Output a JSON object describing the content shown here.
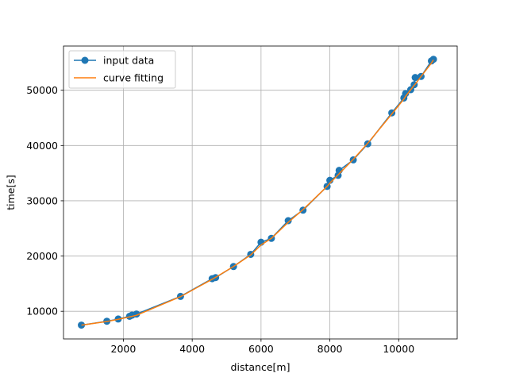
{
  "chart_data": {
    "type": "line",
    "xlabel": "distance[m]",
    "ylabel": "time[s]",
    "xlim": [
      260,
      11700
    ],
    "ylim": [
      5000,
      58000
    ],
    "xticks": [
      2000,
      4000,
      6000,
      8000,
      10000
    ],
    "yticks": [
      10000,
      20000,
      30000,
      40000,
      50000
    ],
    "xtick_labels": [
      "2000",
      "4000",
      "6000",
      "8000",
      "10000"
    ],
    "ytick_labels": [
      "10000",
      "20000",
      "30000",
      "40000",
      "50000"
    ],
    "grid": true,
    "legend_position": "top-left",
    "series": [
      {
        "name": "input data",
        "style": "line-with-markers",
        "color": "#1f77b4",
        "x": [
          780,
          1520,
          1850,
          2180,
          2250,
          2380,
          3660,
          4580,
          4680,
          5200,
          5700,
          6000,
          6300,
          6790,
          7220,
          7920,
          8000,
          8240,
          8270,
          8680,
          9100,
          9800,
          10150,
          10200,
          10350,
          10450,
          10480,
          10650,
          10950,
          11010
        ],
        "y": [
          7500,
          8200,
          8600,
          9100,
          9300,
          9500,
          12700,
          15900,
          16100,
          18100,
          20300,
          22500,
          23200,
          26400,
          28300,
          32600,
          33700,
          34600,
          35500,
          37400,
          40300,
          45900,
          48600,
          49400,
          50100,
          51000,
          52300,
          52500,
          55300,
          55600
        ]
      },
      {
        "name": "curve fitting",
        "style": "line",
        "color": "#ff7f0e",
        "x": [
          780,
          1520,
          1850,
          2180,
          2250,
          2380,
          3660,
          4580,
          4680,
          5200,
          5700,
          6000,
          6300,
          6790,
          7220,
          7920,
          8000,
          8240,
          8270,
          8680,
          9100,
          9800,
          10150,
          10200,
          10350,
          10450,
          10480,
          10650,
          10950,
          11010
        ],
        "y": [
          7500,
          8150,
          8550,
          8980,
          9080,
          9280,
          12650,
          15800,
          16150,
          18100,
          20200,
          22000,
          23200,
          26100,
          28400,
          32600,
          33200,
          34700,
          34900,
          37500,
          40400,
          45700,
          48400,
          48900,
          50100,
          50900,
          51100,
          52500,
          54900,
          55500
        ]
      }
    ]
  }
}
